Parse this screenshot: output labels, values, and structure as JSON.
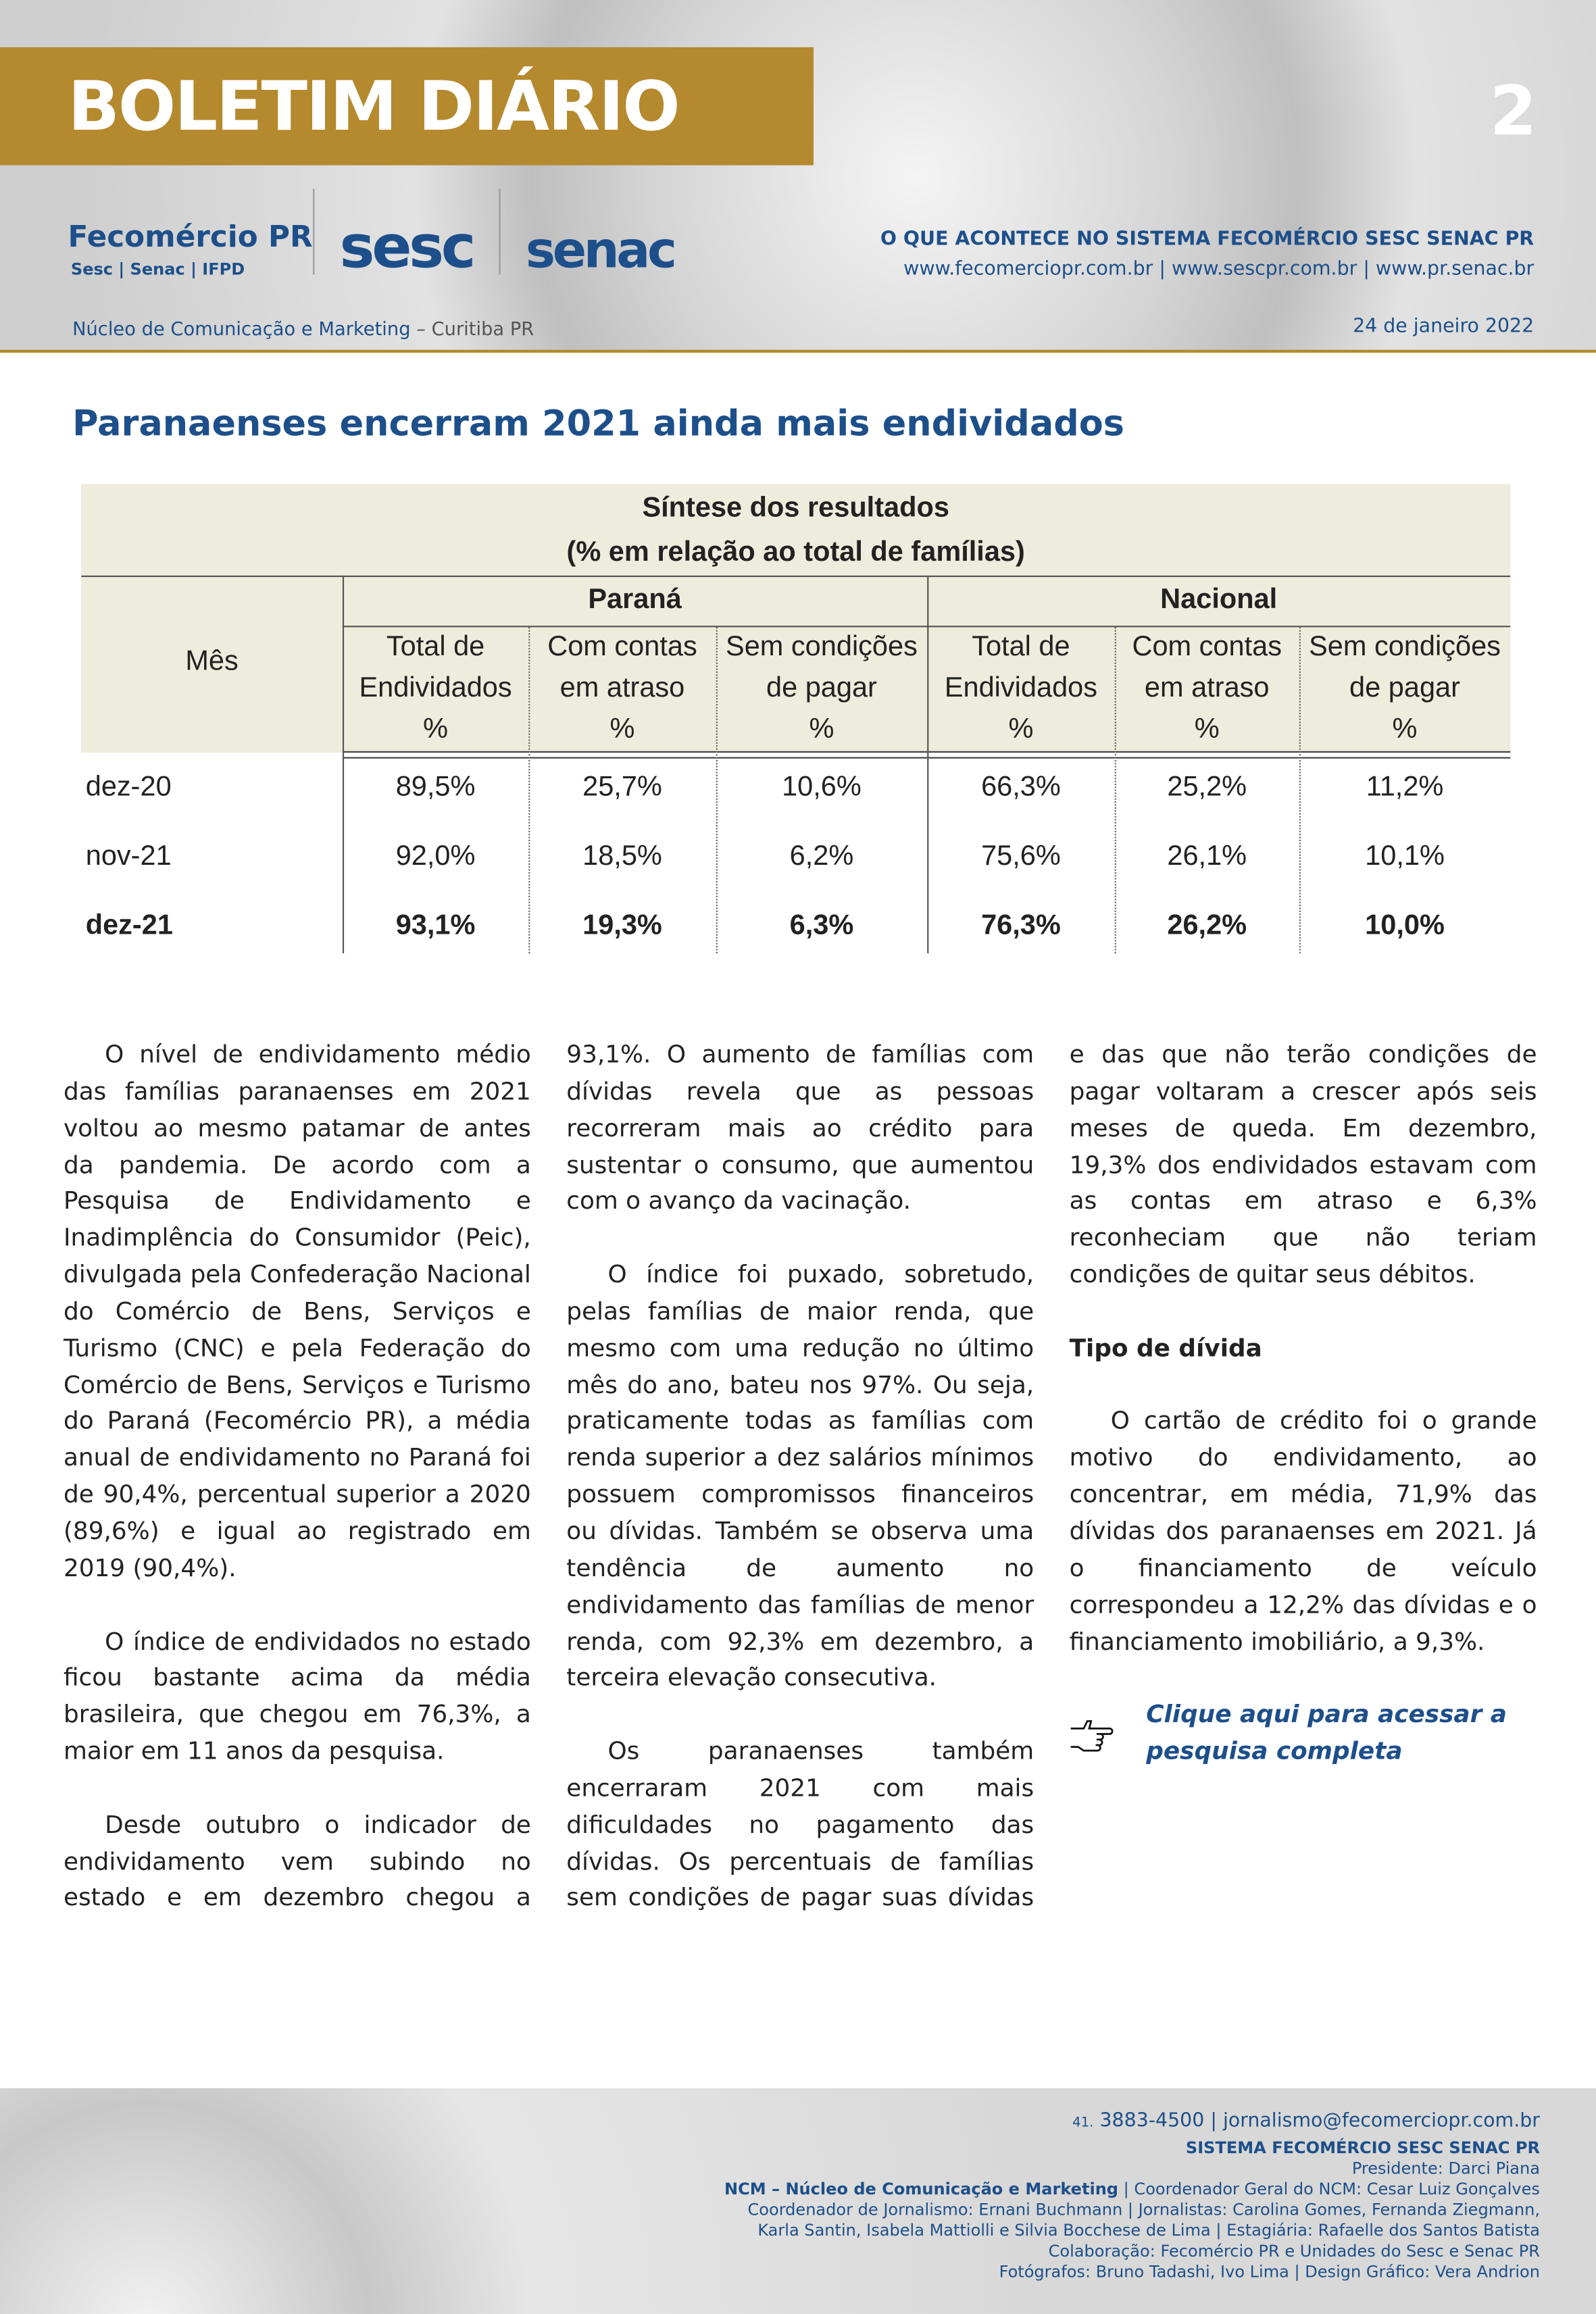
{
  "header": {
    "banner": "BOLETIM DIÁRIO",
    "page_number": "2",
    "logo_fecomercio": "Fecomércio PR",
    "logo_fecomercio_sub": "Sesc | Senac | IFPD",
    "logo_sesc": "sesc",
    "logo_senac": "senac",
    "tagline": "O QUE ACONTECE NO SISTEMA FECOMÉRCIO SESC SENAC PR",
    "websites": "www.fecomerciopr.com.br | www.sescpr.com.br | www.pr.senac.br",
    "unit": "Núcleo de Comunicação e Marketing",
    "location": "– Curitiba PR",
    "date": "24 de janeiro 2022"
  },
  "headline": "Paranaenses encerram 2021 ainda mais endividados",
  "table": {
    "title": [
      "Síntese dos resultados",
      "(% em relação ao total de famílias)"
    ],
    "month_header": "Mês",
    "groups": [
      "Paraná",
      "Nacional"
    ],
    "columns": [
      [
        "Total de",
        "Endividados",
        "%"
      ],
      [
        "Com contas",
        "em atraso",
        "%"
      ],
      [
        "Sem condições",
        "de pagar",
        "%"
      ],
      [
        "Total de",
        "Endividados",
        "%"
      ],
      [
        "Com contas",
        "em atraso",
        "%"
      ],
      [
        "Sem condições",
        "de pagar",
        "%"
      ]
    ],
    "rows": [
      [
        "dez-20",
        "89,5%",
        "25,7%",
        "10,6%",
        "66,3%",
        "25,2%",
        "11,2%"
      ],
      [
        "nov-21",
        "92,0%",
        "18,5%",
        "6,2%",
        "75,6%",
        "26,1%",
        "10,1%"
      ],
      [
        "dez-21",
        "93,1%",
        "19,3%",
        "6,3%",
        "76,3%",
        "26,2%",
        "10,0%"
      ]
    ]
  },
  "article": {
    "paragraphs": [
      "O nível de endividamento médio das famílias paranaenses em 2021 voltou ao mesmo patamar de antes da pandemia. De acordo com a Pesquisa de Endividamento e Inadimplência do Consumidor (Peic), divulgada pela Confederação Nacional do Comércio de Bens, Serviços e Turismo (CNC) e pela Federação do Comércio de Bens, Serviços e Turismo do Paraná (Fecomércio PR), a média anual de endividamento no Paraná foi de 90,4%, percentual superior a 2020 (89,6%) e igual ao registrado em 2019 (90,4%).",
      "O índice de endividados no estado ficou bastante acima da média brasileira, que chegou em 76,3%, a maior em 11 anos da pesquisa.",
      "Desde outubro o indicador de endividamento vem subindo no estado e em dezembro chegou a 93,1%. O aumento de famílias com dívidas revela que as pessoas recorreram mais ao crédito para sustentar o consumo, que aumentou com o avanço da vacinação.",
      "O índice foi puxado, sobretudo, pelas famílias de maior renda, que mesmo com uma redução no último mês do ano, bateu nos 97%. Ou seja, praticamente todas as famílias com renda superior a dez salários mínimos possuem compromissos financeiros ou dívidas. Também se observa uma tendência de aumento no endividamento das famílias de menor renda, com 92,3% em dezembro, a terceira elevação consecutiva.",
      "Os paranaenses também encerraram 2021 com mais dificuldades no pagamento das dívidas. Os percentuais de famílias sem condições de pagar suas dívidas e das que não terão condições de pagar voltaram a crescer após seis meses de queda. Em dezembro, 19,3% dos endividados estavam com as contas em atraso e 6,3% reconheciam que não teriam condições de quitar seus débitos."
    ],
    "subheading": "Tipo de dívida",
    "paragraph_after": "O cartão de crédito foi o grande motivo do endividamento, ao concentrar, em média, 71,9% das dívidas dos paranaenses em 2021. Já o financiamento de veículo correspondeu a 12,2% das dívidas e o financiamento imobiliário, a 9,3%.",
    "link": "Clique aqui para acessar a pesquisa completa"
  },
  "footer": {
    "area_code": "41.",
    "contact": "3883-4500 | jornalismo@fecomerciopr.com.br",
    "system": "SISTEMA FECOMÉRCIO SESC SENAC PR",
    "president": "Presidente: Darci Piana",
    "ncm": "NCM – Núcleo de Comunicação e Marketing",
    "lines": [
      " | Coordenador Geral do NCM: Cesar Luiz Gonçalves",
      "Coordenador de Jornalismo: Ernani Buchmann | Jornalistas: Carolina Gomes, Fernanda Ziegmann,",
      "Karla Santin, Isabela Mattiolli e Silvia Bocchese de Lima | Estagiária: Rafaelle dos Santos Batista",
      "Colaboração: Fecomércio PR e Unidades do Sesc e Senac PR",
      "Fotógrafos: Bruno Tadashi, Ivo Lima | Design Gráfico: Vera Andrion"
    ]
  }
}
